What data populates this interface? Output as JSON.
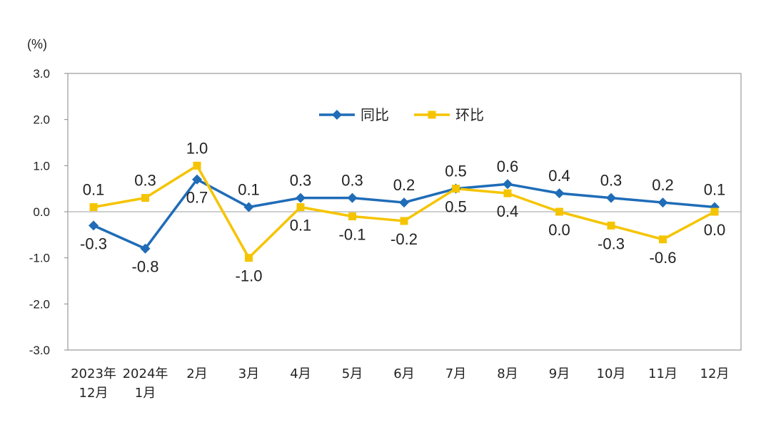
{
  "chart_data": {
    "type": "line",
    "unit_label": "(%)",
    "categories": [
      [
        "2023年",
        "12月"
      ],
      [
        "2024年",
        "1月"
      ],
      [
        "2月"
      ],
      [
        "3月"
      ],
      [
        "4月"
      ],
      [
        "5月"
      ],
      [
        "6月"
      ],
      [
        "7月"
      ],
      [
        "8月"
      ],
      [
        "9月"
      ],
      [
        "10月"
      ],
      [
        "11月"
      ],
      [
        "12月"
      ]
    ],
    "ylim": [
      -3.0,
      3.0
    ],
    "yticks": [
      "3.0",
      "2.0",
      "1.0",
      "0.0",
      "-1.0",
      "-2.0",
      "-3.0"
    ],
    "ytick_values": [
      3,
      2,
      1,
      0,
      -1,
      -2,
      -3
    ],
    "series": [
      {
        "name": "同比",
        "color": "#1f6cb8",
        "marker": "diamond",
        "values": [
          -0.3,
          -0.8,
          0.7,
          0.1,
          0.3,
          0.3,
          0.2,
          0.5,
          0.6,
          0.4,
          0.3,
          0.2,
          0.1
        ],
        "labels": [
          "-0.3",
          "-0.8",
          "0.7",
          "0.1",
          "0.3",
          "0.3",
          "0.2",
          "0.5",
          "0.6",
          "0.4",
          "0.3",
          "0.2",
          "0.1"
        ]
      },
      {
        "name": "环比",
        "color": "#f5c400",
        "marker": "square",
        "values": [
          0.1,
          0.3,
          1.0,
          -1.0,
          0.1,
          -0.1,
          -0.2,
          0.5,
          0.4,
          0.0,
          -0.3,
          -0.6,
          0.0
        ],
        "labels": [
          "0.1",
          "0.3",
          "1.0",
          "-1.0",
          "0.1",
          "-0.1",
          "-0.2",
          "0.5",
          "0.4",
          "0.0",
          "-0.3",
          "-0.6",
          "0.0"
        ]
      }
    ],
    "legend_position": "top-center"
  }
}
